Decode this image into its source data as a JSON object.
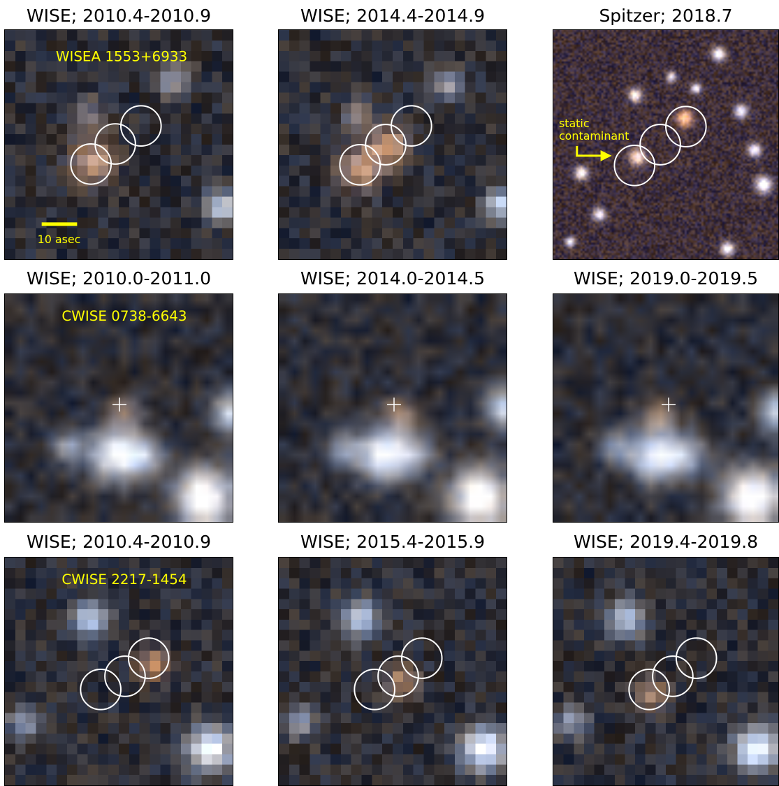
{
  "panels": [
    {
      "title": "WISE; 2010.4-2010.9",
      "object_label": "WISEA 1553+6933",
      "scale_label": "10 asec",
      "marker": "circles",
      "texture": "wise"
    },
    {
      "title": "WISE; 2014.4-2014.9",
      "marker": "circles",
      "texture": "wise"
    },
    {
      "title": "Spitzer; 2018.7",
      "marker": "circles",
      "texture": "spitzer",
      "annotation": [
        "static",
        "contaminant"
      ],
      "annotation_icon": "right-arrow-icon"
    },
    {
      "title": "WISE; 2010.0-2011.0",
      "object_label": "CWISE 0738-6643",
      "marker": "crosshair",
      "texture": "wise-blur"
    },
    {
      "title": "WISE; 2014.0-2014.5",
      "marker": "crosshair",
      "texture": "wise-blur"
    },
    {
      "title": "WISE; 2019.0-2019.5",
      "marker": "crosshair",
      "texture": "wise-blur"
    },
    {
      "title": "WISE; 2010.4-2010.9",
      "object_label": "CWISE 2217-1454",
      "marker": "circles",
      "texture": "wise"
    },
    {
      "title": "WISE; 2015.4-2015.9",
      "marker": "circles",
      "texture": "wise"
    },
    {
      "title": "WISE; 2019.4-2019.8",
      "marker": "circles",
      "texture": "wise"
    }
  ],
  "colors": {
    "label": "#ffff00",
    "marker": "#ffffff",
    "frame": "#000000",
    "sky": "#1e232b"
  }
}
